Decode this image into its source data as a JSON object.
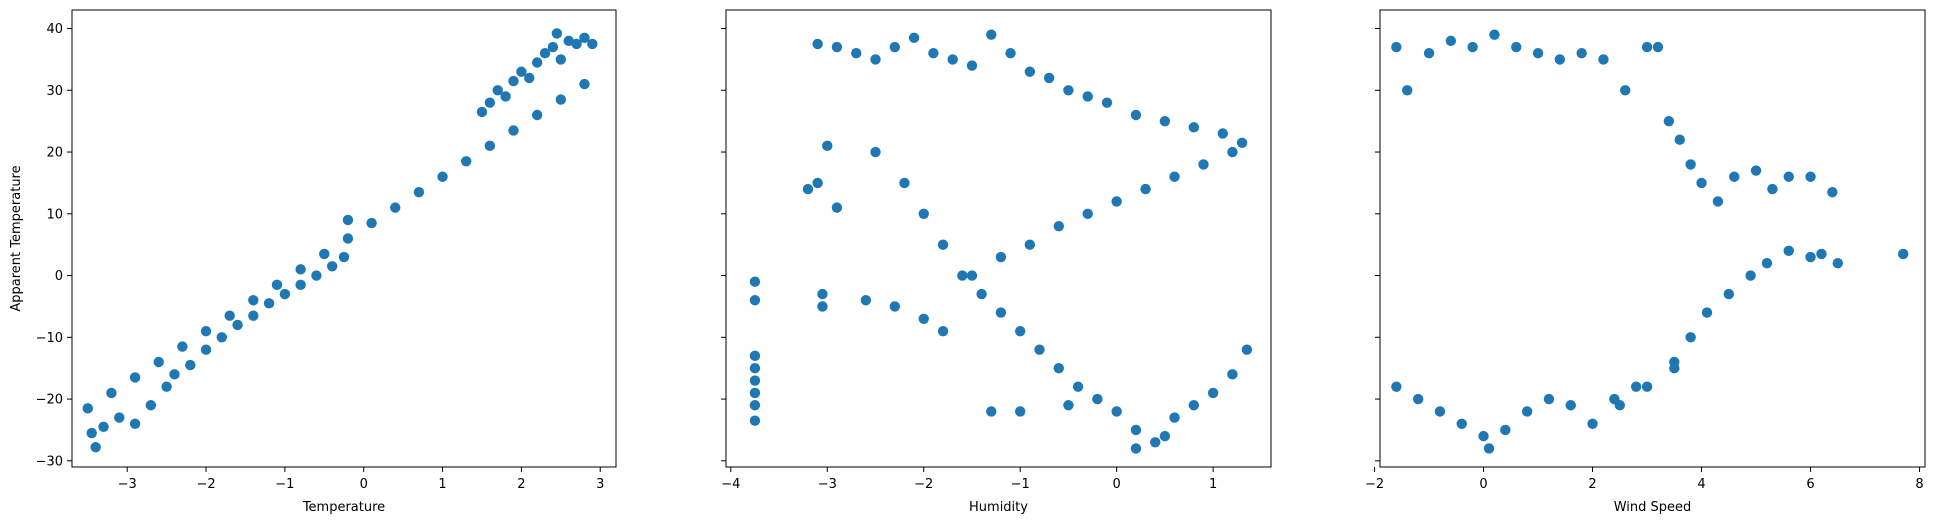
{
  "chart_data": [
    {
      "type": "scatter",
      "xlabel": "Temperature",
      "ylabel": "Apparent Temperature",
      "xlim": [
        -3.7,
        3.2
      ],
      "ylim": [
        -31,
        43
      ],
      "xticks": [
        -3,
        -2,
        -1,
        0,
        1,
        2,
        3
      ],
      "yticks": [
        -30,
        -20,
        -10,
        0,
        10,
        20,
        30,
        40
      ],
      "show_ytick_labels": true,
      "color": "#1f77b4",
      "grid": false,
      "series": [
        {
          "points": [
            [
              -3.5,
              -21.5
            ],
            [
              -3.2,
              -19
            ],
            [
              -2.9,
              -16.5
            ],
            [
              -2.6,
              -14
            ],
            [
              -2.3,
              -11.5
            ],
            [
              -2.0,
              -9
            ],
            [
              -1.7,
              -6.5
            ],
            [
              -1.4,
              -4
            ],
            [
              -1.1,
              -1.5
            ],
            [
              -0.8,
              1
            ],
            [
              -0.5,
              3.5
            ],
            [
              -0.2,
              6
            ],
            [
              0.1,
              8.5
            ],
            [
              0.4,
              11
            ],
            [
              0.7,
              13.5
            ],
            [
              1.0,
              16
            ],
            [
              1.3,
              18.5
            ],
            [
              1.6,
              21
            ],
            [
              1.9,
              23.5
            ],
            [
              2.2,
              26
            ],
            [
              2.5,
              28.5
            ],
            [
              2.8,
              31
            ],
            [
              2.9,
              37.5
            ],
            [
              -3.4,
              -27.8
            ],
            [
              -3.45,
              -25.5
            ],
            [
              -3.3,
              -24.5
            ],
            [
              -3.1,
              -23
            ],
            [
              -2.9,
              -24
            ],
            [
              -2.7,
              -21
            ],
            [
              -2.5,
              -18
            ],
            [
              -2.4,
              -16
            ],
            [
              -2.2,
              -14.5
            ],
            [
              -2.0,
              -12
            ],
            [
              -1.8,
              -10
            ],
            [
              -1.6,
              -8
            ],
            [
              -1.4,
              -6.5
            ],
            [
              -1.2,
              -4.5
            ],
            [
              -1.0,
              -3
            ],
            [
              -0.8,
              -1.5
            ],
            [
              -0.6,
              0
            ],
            [
              -0.4,
              1.5
            ],
            [
              -0.25,
              3
            ],
            [
              -0.2,
              9
            ],
            [
              1.5,
              26.5
            ],
            [
              1.6,
              28
            ],
            [
              1.7,
              30
            ],
            [
              1.8,
              29
            ],
            [
              1.9,
              31.5
            ],
            [
              2.0,
              33
            ],
            [
              2.1,
              32
            ],
            [
              2.2,
              34.5
            ],
            [
              2.3,
              36
            ],
            [
              2.4,
              37
            ],
            [
              2.45,
              39.2
            ],
            [
              2.5,
              35
            ],
            [
              2.6,
              38
            ],
            [
              2.7,
              37.5
            ],
            [
              2.8,
              38.5
            ]
          ]
        }
      ]
    },
    {
      "type": "scatter",
      "xlabel": "Humidity",
      "ylabel": "",
      "xlim": [
        -4.05,
        1.6
      ],
      "ylim": [
        -31,
        43
      ],
      "xticks": [
        -4,
        -3,
        -2,
        -1,
        0,
        1
      ],
      "yticks": [
        -30,
        -20,
        -10,
        0,
        10,
        20,
        30,
        40
      ],
      "show_ytick_labels": false,
      "color": "#1f77b4",
      "grid": false,
      "series": [
        {
          "points": [
            [
              -3.75,
              -1
            ],
            [
              -3.75,
              -4
            ],
            [
              -3.75,
              -13
            ],
            [
              -3.75,
              -15
            ],
            [
              -3.75,
              -17
            ],
            [
              -3.75,
              -19
            ],
            [
              -3.75,
              -21
            ],
            [
              -3.75,
              -23.5
            ],
            [
              -3.2,
              14
            ],
            [
              -3.1,
              15
            ],
            [
              -3.05,
              -3
            ],
            [
              -3.05,
              -5
            ],
            [
              -3.0,
              21
            ],
            [
              -2.9,
              11
            ],
            [
              -3.1,
              37.5
            ],
            [
              -2.9,
              37
            ],
            [
              -2.7,
              36
            ],
            [
              -2.5,
              35
            ],
            [
              -2.3,
              37
            ],
            [
              -2.1,
              38.5
            ],
            [
              -1.9,
              36
            ],
            [
              -1.7,
              35
            ],
            [
              -1.5,
              34
            ],
            [
              -1.3,
              39
            ],
            [
              -1.1,
              36
            ],
            [
              -0.9,
              33
            ],
            [
              -0.7,
              32
            ],
            [
              -0.5,
              30
            ],
            [
              -0.3,
              29
            ],
            [
              -0.1,
              28
            ],
            [
              0.2,
              26
            ],
            [
              0.5,
              25
            ],
            [
              0.8,
              24
            ],
            [
              1.1,
              23
            ],
            [
              1.3,
              21.5
            ],
            [
              -2.5,
              20
            ],
            [
              -2.2,
              15
            ],
            [
              -2.0,
              10
            ],
            [
              -1.8,
              5
            ],
            [
              -1.6,
              0
            ],
            [
              -1.4,
              -3
            ],
            [
              -1.2,
              -6
            ],
            [
              -1.0,
              -9
            ],
            [
              -0.8,
              -12
            ],
            [
              -0.6,
              -15
            ],
            [
              -0.4,
              -18
            ],
            [
              -0.2,
              -20
            ],
            [
              0.0,
              -22
            ],
            [
              0.2,
              -25
            ],
            [
              0.4,
              -27
            ],
            [
              0.6,
              -23
            ],
            [
              0.8,
              -21
            ],
            [
              1.0,
              -19
            ],
            [
              1.2,
              -16
            ],
            [
              1.35,
              -12
            ],
            [
              -1.3,
              -22
            ],
            [
              -1.0,
              -22
            ],
            [
              -0.5,
              -21
            ],
            [
              0.2,
              -28
            ],
            [
              0.5,
              -26
            ],
            [
              -2.6,
              -4
            ],
            [
              -2.3,
              -5
            ],
            [
              -2.0,
              -7
            ],
            [
              -1.8,
              -9
            ],
            [
              -1.5,
              0
            ],
            [
              -1.2,
              3
            ],
            [
              -0.9,
              5
            ],
            [
              -0.6,
              8
            ],
            [
              -0.3,
              10
            ],
            [
              0.0,
              12
            ],
            [
              0.3,
              14
            ],
            [
              0.6,
              16
            ],
            [
              0.9,
              18
            ],
            [
              1.2,
              20
            ]
          ]
        }
      ]
    },
    {
      "type": "scatter",
      "xlabel": "Wind Speed",
      "ylabel": "",
      "xlim": [
        -1.9,
        8.1
      ],
      "ylim": [
        -31,
        43
      ],
      "xticks": [
        -2,
        0,
        2,
        4,
        6,
        8
      ],
      "yticks": [
        -30,
        -20,
        -10,
        0,
        10,
        20,
        30,
        40
      ],
      "show_ytick_labels": false,
      "color": "#1f77b4",
      "grid": false,
      "series": [
        {
          "points": [
            [
              -1.6,
              37
            ],
            [
              -1.6,
              -18
            ],
            [
              -1.4,
              30
            ],
            [
              -1.2,
              -20
            ],
            [
              -1.0,
              36
            ],
            [
              -0.8,
              -22
            ],
            [
              -0.6,
              38
            ],
            [
              -0.4,
              -24
            ],
            [
              -0.2,
              37
            ],
            [
              0.0,
              -26
            ],
            [
              0.1,
              -28
            ],
            [
              0.2,
              39
            ],
            [
              0.4,
              -25
            ],
            [
              0.6,
              37
            ],
            [
              0.8,
              -22
            ],
            [
              1.0,
              36
            ],
            [
              1.2,
              -20
            ],
            [
              1.4,
              35
            ],
            [
              1.6,
              -21
            ],
            [
              1.8,
              36
            ],
            [
              2.0,
              -24
            ],
            [
              2.2,
              35
            ],
            [
              2.4,
              -20
            ],
            [
              2.6,
              30
            ],
            [
              2.8,
              -18
            ],
            [
              3.0,
              37
            ],
            [
              3.2,
              37
            ],
            [
              3.4,
              25
            ],
            [
              3.6,
              22
            ],
            [
              3.8,
              18
            ],
            [
              4.0,
              15
            ],
            [
              4.3,
              12
            ],
            [
              4.6,
              16
            ],
            [
              5.0,
              17
            ],
            [
              5.3,
              14
            ],
            [
              5.6,
              16
            ],
            [
              6.0,
              16
            ],
            [
              6.4,
              13.5
            ],
            [
              3.5,
              -14
            ],
            [
              3.8,
              -10
            ],
            [
              4.1,
              -6
            ],
            [
              4.5,
              -3
            ],
            [
              4.9,
              0
            ],
            [
              5.2,
              2
            ],
            [
              5.6,
              4
            ],
            [
              6.0,
              3
            ],
            [
              6.2,
              3.5
            ],
            [
              6.5,
              2
            ],
            [
              7.7,
              3.5
            ],
            [
              2.5,
              -21
            ],
            [
              3.0,
              -18
            ],
            [
              3.5,
              -15
            ]
          ]
        }
      ]
    }
  ]
}
